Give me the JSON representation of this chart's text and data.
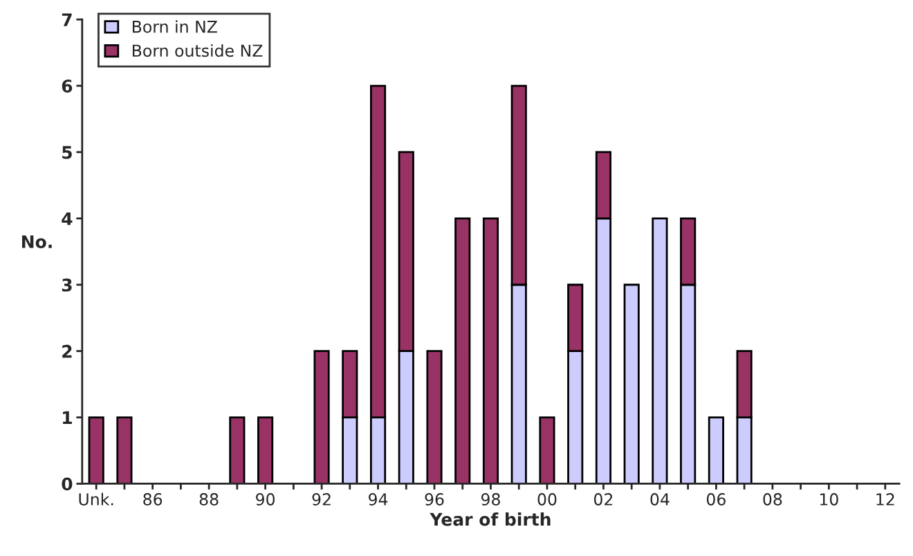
{
  "chart_data": {
    "type": "bar",
    "stacked": true,
    "xlabel": "Year of birth",
    "ylabel": "No.",
    "categories": [
      "Unk.",
      null,
      "86",
      null,
      "88",
      null,
      "90",
      null,
      "92",
      null,
      "94",
      null,
      "96",
      null,
      "98",
      null,
      "00",
      null,
      "02",
      null,
      "04",
      null,
      "06",
      null,
      "08",
      null,
      "10",
      null,
      "12"
    ],
    "series": [
      {
        "name": "Born in NZ",
        "color": "#ccccff",
        "values": [
          0,
          0,
          0,
          0,
          0,
          0,
          0,
          0,
          0,
          1,
          1,
          2,
          0,
          0,
          0,
          3,
          0,
          2,
          4,
          3,
          4,
          3,
          1,
          1,
          0,
          0,
          0,
          0,
          0
        ]
      },
      {
        "name": "Born outside NZ",
        "color": "#993366",
        "values": [
          1,
          1,
          0,
          0,
          0,
          1,
          1,
          0,
          2,
          1,
          5,
          3,
          2,
          4,
          4,
          3,
          1,
          1,
          1,
          0,
          0,
          1,
          0,
          1,
          0,
          0,
          0,
          0,
          0
        ]
      }
    ],
    "ylim": [
      0,
      7
    ],
    "yticks": [
      0,
      1,
      2,
      3,
      4,
      5,
      6,
      7
    ],
    "grid": false,
    "legend": "top left"
  }
}
